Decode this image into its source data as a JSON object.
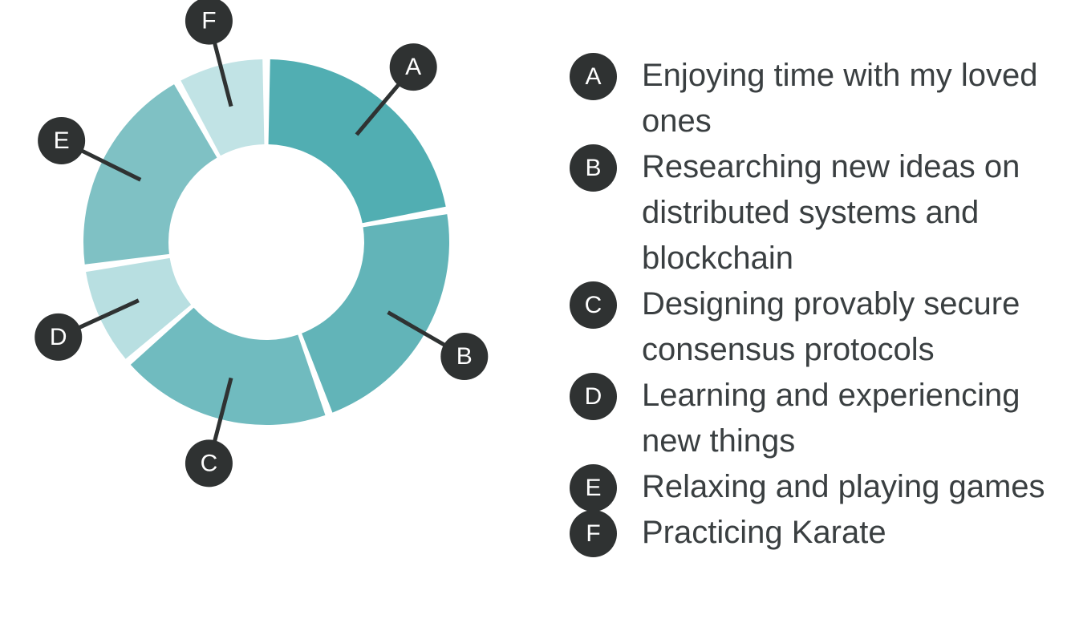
{
  "chart_data": {
    "type": "pie",
    "segments": [
      {
        "label": "A",
        "description": "Enjoying time with my loved ones",
        "value": 22,
        "color": "#51aeb2"
      },
      {
        "label": "B",
        "description": "Researching new ideas on distributed systems and blockchain",
        "value": 22,
        "color": "#62b4b8"
      },
      {
        "label": "C",
        "description": "Designing provably secure consensus protocols",
        "value": 19,
        "color": "#70bbbf"
      },
      {
        "label": "D",
        "description": "Learning and experiencing new things",
        "value": 9,
        "color": "#b8dfe1"
      },
      {
        "label": "E",
        "description": "Relaxing and playing games",
        "value": 19,
        "color": "#7fc1c4"
      },
      {
        "label": "F",
        "description": "Practicing Karate",
        "value": 8,
        "color": "#c1e3e5"
      }
    ],
    "legend_position": "right",
    "title": ""
  }
}
